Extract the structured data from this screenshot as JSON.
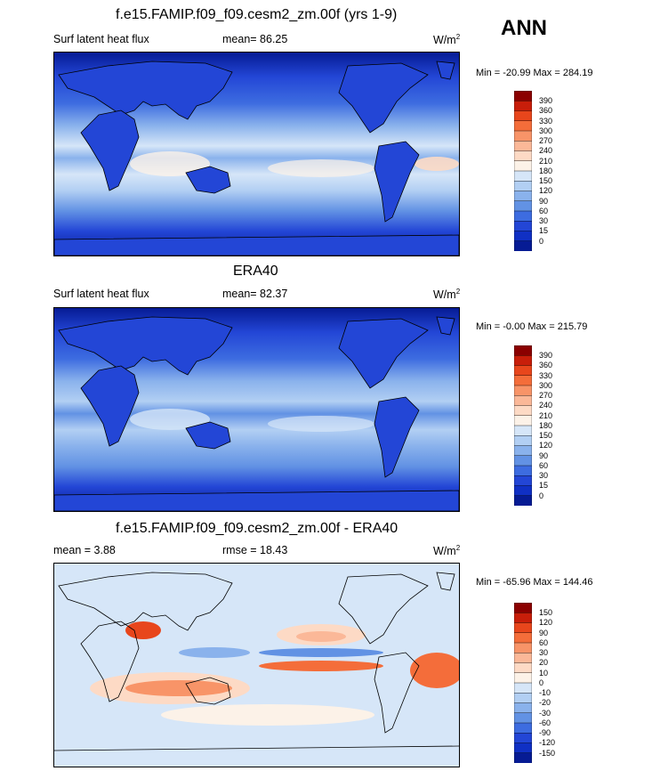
{
  "season": "ANN",
  "panels": [
    {
      "title": "f.e15.FAMIP.f09_f09.cesm2_zm.00f (yrs 1-9)",
      "left": "Surf latent heat flux",
      "mean_label": "mean=  86.25",
      "units": "W/m",
      "units_sup": "2",
      "minmax": "Min = -20.99 Max = 284.19",
      "levels": [
        "390",
        "360",
        "330",
        "300",
        "270",
        "240",
        "210",
        "180",
        "150",
        "120",
        "90",
        "60",
        "30",
        "15",
        "0"
      ],
      "colors": [
        "#8b0000",
        "#c81e0a",
        "#e8461c",
        "#f46d3a",
        "#f89468",
        "#fbb898",
        "#fddac5",
        "#fcf2e8",
        "#d6e6f8",
        "#b2cff3",
        "#8ab2ec",
        "#6292e4",
        "#3d6ce0",
        "#2346d6",
        "#1030c4",
        "#061b94"
      ]
    },
    {
      "title": "ERA40",
      "left": "Surf latent heat flux",
      "mean_label": "mean=  82.37",
      "units": "W/m",
      "units_sup": "2",
      "minmax": "Min =  -0.00 Max = 215.79",
      "levels": [
        "390",
        "360",
        "330",
        "300",
        "270",
        "240",
        "210",
        "180",
        "150",
        "120",
        "90",
        "60",
        "30",
        "15",
        "0"
      ],
      "colors": [
        "#8b0000",
        "#c81e0a",
        "#e8461c",
        "#f46d3a",
        "#f89468",
        "#fbb898",
        "#fddac5",
        "#fcf2e8",
        "#d6e6f8",
        "#b2cff3",
        "#8ab2ec",
        "#6292e4",
        "#3d6ce0",
        "#2346d6",
        "#1030c4",
        "#061b94"
      ]
    },
    {
      "title": "f.e15.FAMIP.f09_f09.cesm2_zm.00f - ERA40",
      "left": "mean =   3.88",
      "mean_label": "rmse =  18.43",
      "units": "W/m",
      "units_sup": "2",
      "minmax": "Min = -65.96 Max = 144.46",
      "levels": [
        "150",
        "120",
        "90",
        "60",
        "30",
        "20",
        "10",
        "0",
        "-10",
        "-20",
        "-30",
        "-60",
        "-90",
        "-120",
        "-150"
      ],
      "colors": [
        "#8b0000",
        "#c81e0a",
        "#e8461c",
        "#f46d3a",
        "#f89468",
        "#fbb898",
        "#fddac5",
        "#fcf2e8",
        "#d6e6f8",
        "#b2cff3",
        "#8ab2ec",
        "#6292e4",
        "#3d6ce0",
        "#2346d6",
        "#1030c4",
        "#061b94"
      ]
    }
  ]
}
